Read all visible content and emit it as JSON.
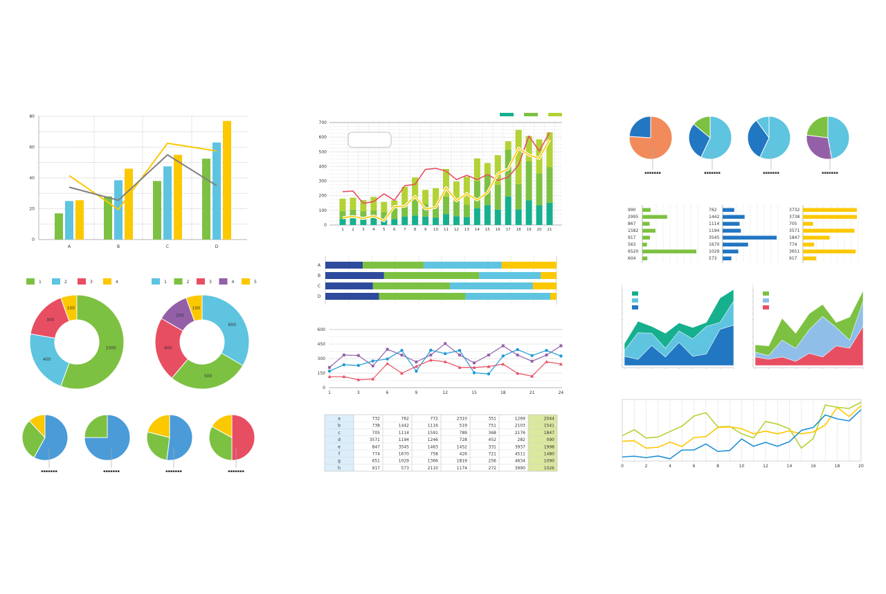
{
  "colors": {
    "green": "#7dc142",
    "blue": "#5ec4e0",
    "yellow": "#fcc800",
    "red": "#e84e62",
    "purple": "#9360a8",
    "gray": "#808080",
    "navy": "#2e4a9c",
    "teal": "#16b08e",
    "lime": "#b2d235",
    "darkblue": "#2277c2",
    "orange": "#f28b5c",
    "lightblue": "#8fbfe8",
    "pieblue": "#4a9bd8"
  },
  "placeholder_label": "▪▪▪▪▪▪▪",
  "chart_data": [
    {
      "id": "grouped-bar-line",
      "type": "bar",
      "categories": [
        "A",
        "B",
        "C",
        "D"
      ],
      "ylim": [
        0,
        80
      ],
      "yticks": [
        0,
        20,
        40,
        60,
        80
      ],
      "grid": true,
      "series": [
        {
          "color": "green",
          "values": [
            17,
            28,
            38,
            52.5
          ]
        },
        {
          "color": "blue",
          "values": [
            25,
            38.5,
            47.5,
            63
          ]
        },
        {
          "color": "yellow",
          "values": [
            25.5,
            46,
            55,
            77
          ]
        }
      ],
      "lines": [
        {
          "color": "yellow",
          "values": [
            41.5,
            19.5,
            62.5,
            57.5
          ]
        },
        {
          "color": "gray",
          "values": [
            34,
            25.5,
            55,
            35
          ]
        }
      ]
    },
    {
      "id": "stacked-bar-line",
      "type": "bar",
      "stacked": true,
      "categories": [
        "1",
        "2",
        "3",
        "4",
        "5",
        "6",
        "7",
        "8",
        "9",
        "10",
        "11",
        "12",
        "13",
        "14",
        "15",
        "16",
        "17",
        "18",
        "19",
        "20",
        "21"
      ],
      "ylim": [
        0,
        700
      ],
      "yticks": [
        0,
        100,
        200,
        300,
        400,
        500,
        600,
        700
      ],
      "grid": true,
      "legend": "top-right",
      "series": [
        {
          "color": "teal",
          "values": [
            40,
            45,
            35,
            45,
            35,
            40,
            57,
            65,
            58,
            50,
            75,
            60,
            55,
            115,
            135,
            105,
            195,
            107,
            168,
            135,
            152
          ]
        },
        {
          "color": "green",
          "values": [
            55,
            60,
            60,
            55,
            53,
            70,
            63,
            110,
            87,
            80,
            120,
            105,
            85,
            185,
            210,
            170,
            320,
            173,
            267,
            217,
            243
          ]
        },
        {
          "color": "lime",
          "values": [
            85,
            82,
            75,
            92,
            70,
            58,
            140,
            150,
            95,
            122,
            188,
            132,
            190,
            155,
            78,
            202,
            57,
            370,
            173,
            233,
            238
          ]
        }
      ],
      "lines": [
        {
          "color": "red",
          "values": [
            228,
            232,
            148,
            160,
            213,
            168,
            268,
            278,
            380,
            387,
            368,
            310,
            340,
            310,
            345,
            305,
            327,
            410,
            608,
            505,
            632
          ]
        },
        {
          "color": "yellow",
          "values": [
            50,
            58,
            45,
            62,
            28,
            127,
            128,
            195,
            110,
            120,
            255,
            165,
            215,
            170,
            222,
            350,
            383,
            525,
            478,
            455,
            583
          ]
        }
      ]
    },
    {
      "id": "stacked-100-hbar",
      "type": "bar",
      "orientation": "horizontal",
      "stacked": true,
      "categories": [
        "A",
        "B",
        "C",
        "D"
      ],
      "series": [
        {
          "color": "navy",
          "values": [
            16.2,
            25.4,
            20.6,
            23.2
          ]
        },
        {
          "color": "green",
          "values": [
            26.4,
            41.1,
            33.3,
            37.4
          ]
        },
        {
          "color": "blue",
          "values": [
            33.7,
            26.7,
            35.9,
            36.7
          ]
        },
        {
          "color": "yellow",
          "values": [
            23.7,
            6.8,
            10.2,
            2.7
          ]
        }
      ]
    },
    {
      "id": "marker-lines",
      "type": "line",
      "xticks": [
        "1",
        "3",
        "6",
        "9",
        "12",
        "15",
        "18",
        "21",
        "24"
      ],
      "ylim": [
        0,
        600
      ],
      "yticks": [
        0,
        150,
        300,
        450,
        600
      ],
      "grid": true,
      "series": [
        {
          "color": "purple",
          "marker": "square",
          "values": [
            209,
            337,
            332,
            225,
            396,
            337,
            266,
            337,
            455,
            337,
            256,
            337,
            432,
            337,
            273,
            337,
            432
          ]
        },
        {
          "color": "#1e9ad6",
          "marker": "circle",
          "values": [
            171,
            237,
            230,
            275,
            296,
            384,
            171,
            387,
            351,
            384,
            154,
            142,
            327,
            393,
            332,
            384,
            327
          ]
        },
        {
          "color": "red",
          "marker": "triangle",
          "values": [
            114,
            114,
            83,
            90,
            249,
            149,
            220,
            285,
            268,
            209,
            209,
            218,
            244,
            149,
            119,
            268,
            244
          ]
        }
      ]
    },
    {
      "id": "data-table",
      "type": "table",
      "rows": [
        [
          "a",
          "732",
          "762",
          "772",
          "2310",
          "351",
          "1269",
          "2044"
        ],
        [
          "b",
          "738",
          "1442",
          "1116",
          "519",
          "751",
          "2103",
          "1541"
        ],
        [
          "c",
          "705",
          "1114",
          "1591",
          "789",
          "368",
          "2176",
          "1847"
        ],
        [
          "d",
          "3571",
          "1194",
          "1246",
          "728",
          "452",
          "282",
          "090"
        ],
        [
          "e",
          "847",
          "3545",
          "1463",
          "1452",
          "331",
          "3937",
          "1998"
        ],
        [
          "f",
          "774",
          "1670",
          "758",
          "426",
          "721",
          "4511",
          "1480"
        ],
        [
          "g",
          "651",
          "1029",
          "1366",
          "1819",
          "256",
          "4634",
          "1090"
        ],
        [
          "h",
          "917",
          "573",
          "2110",
          "1174",
          "272",
          "3990",
          "1026"
        ]
      ]
    },
    {
      "id": "donut-4",
      "type": "pie",
      "donut": true,
      "legend": "top",
      "labels": [
        "1",
        "2",
        "3",
        "4"
      ],
      "values": [
        1000,
        400,
        300,
        100
      ],
      "colors": [
        "green",
        "blue",
        "red",
        "yellow"
      ]
    },
    {
      "id": "donut-5",
      "type": "pie",
      "donut": true,
      "legend": "top",
      "labels": [
        "1",
        "2",
        "3",
        "4",
        "5"
      ],
      "values": [
        600,
        500,
        400,
        200,
        100
      ],
      "colors": [
        "blue",
        "green",
        "red",
        "purple",
        "yellow"
      ]
    },
    {
      "id": "pies-bottom-left",
      "type": "pie",
      "pies": [
        {
          "values": [
            58,
            30,
            12
          ],
          "colors": [
            "pieblue",
            "green",
            "yellow"
          ]
        },
        {
          "values": [
            75,
            25
          ],
          "colors": [
            "pieblue",
            "green"
          ]
        },
        {
          "values": [
            52,
            27,
            21
          ],
          "colors": [
            "pieblue",
            "green",
            "yellow"
          ]
        },
        {
          "values": [
            50,
            33,
            17
          ],
          "colors": [
            "red",
            "green",
            "yellow"
          ]
        }
      ]
    },
    {
      "id": "pies-top-right",
      "type": "pie",
      "pies": [
        {
          "values": [
            76,
            24
          ],
          "colors": [
            "orange",
            "darkblue"
          ]
        },
        {
          "values": [
            57,
            29,
            14
          ],
          "colors": [
            "blue",
            "darkblue",
            "green"
          ]
        },
        {
          "values": [
            57,
            33,
            10
          ],
          "colors": [
            "blue",
            "darkblue",
            "blue"
          ]
        },
        {
          "values": [
            47,
            30,
            23
          ],
          "colors": [
            "blue",
            "purple",
            "green"
          ]
        }
      ]
    },
    {
      "id": "hbar-groups",
      "type": "bar",
      "orientation": "horizontal",
      "groups": [
        {
          "color": "green",
          "values": [
            990,
            2995,
            867,
            1582,
            917,
            563,
            6520,
            604
          ]
        },
        {
          "color": "darkblue",
          "values": [
            762,
            1442,
            1114,
            1194,
            3545,
            1670,
            1029,
            573
          ]
        },
        {
          "color": "yellow",
          "values": [
            3732,
            3738,
            705,
            3571,
            1847,
            774,
            3651,
            917
          ]
        }
      ]
    },
    {
      "id": "area-left",
      "type": "area",
      "stacked": true,
      "legend": "top-left",
      "ylim": [
        0,
        355
      ],
      "series": [
        {
          "color": "darkblue",
          "values": [
            40,
            27,
            87,
            37,
            100,
            40,
            50,
            157,
            175
          ]
        },
        {
          "color": "blue",
          "values": [
            65,
            142,
            140,
            75,
            150,
            115,
            170,
            187,
            280
          ]
        },
        {
          "color": "teal",
          "values": [
            95,
            192,
            170,
            140,
            185,
            165,
            187,
            293,
            330
          ]
        }
      ]
    },
    {
      "id": "area-right",
      "type": "area",
      "stacked": true,
      "legend": "top-left",
      "ylim": [
        0,
        355
      ],
      "series": [
        {
          "color": "red",
          "values": [
            37,
            27,
            37,
            18,
            53,
            37,
            85,
            75,
            170
          ]
        },
        {
          "color": "lightblue",
          "values": [
            58,
            43,
            110,
            75,
            155,
            213,
            165,
            110,
            280
          ]
        },
        {
          "color": "green",
          "values": [
            90,
            85,
            205,
            140,
            225,
            265,
            187,
            210,
            325
          ]
        }
      ]
    },
    {
      "id": "multi-line",
      "type": "line",
      "xlim": [
        0,
        20
      ],
      "xticks": [
        "0",
        "2",
        "4",
        "6",
        "8",
        "10",
        "12",
        "14",
        "16",
        "18",
        "20"
      ],
      "ylim": [
        0,
        300
      ],
      "grid": true,
      "series": [
        {
          "color": "lime",
          "values": [
            122,
            148,
            112,
            116,
            140,
            163,
            207,
            222,
            160,
            162,
            130,
            112,
            184,
            172,
            152,
            68,
            110,
            255,
            245,
            240,
            267
          ]
        },
        {
          "color": "yellow",
          "values": [
            98,
            100,
            68,
            72,
            94,
            75,
            114,
            118,
            158,
            160,
            152,
            130,
            142,
            130,
            143,
            130,
            138,
            168,
            245,
            205,
            253
          ]
        },
        {
          "color": "#1e8fd6",
          "values": [
            30,
            33,
            27,
            34,
            22,
            60,
            60,
            86,
            54,
            58,
            108,
            76,
            93,
            76,
            96,
            145,
            158,
            212,
            195,
            186,
            235
          ]
        }
      ]
    }
  ]
}
